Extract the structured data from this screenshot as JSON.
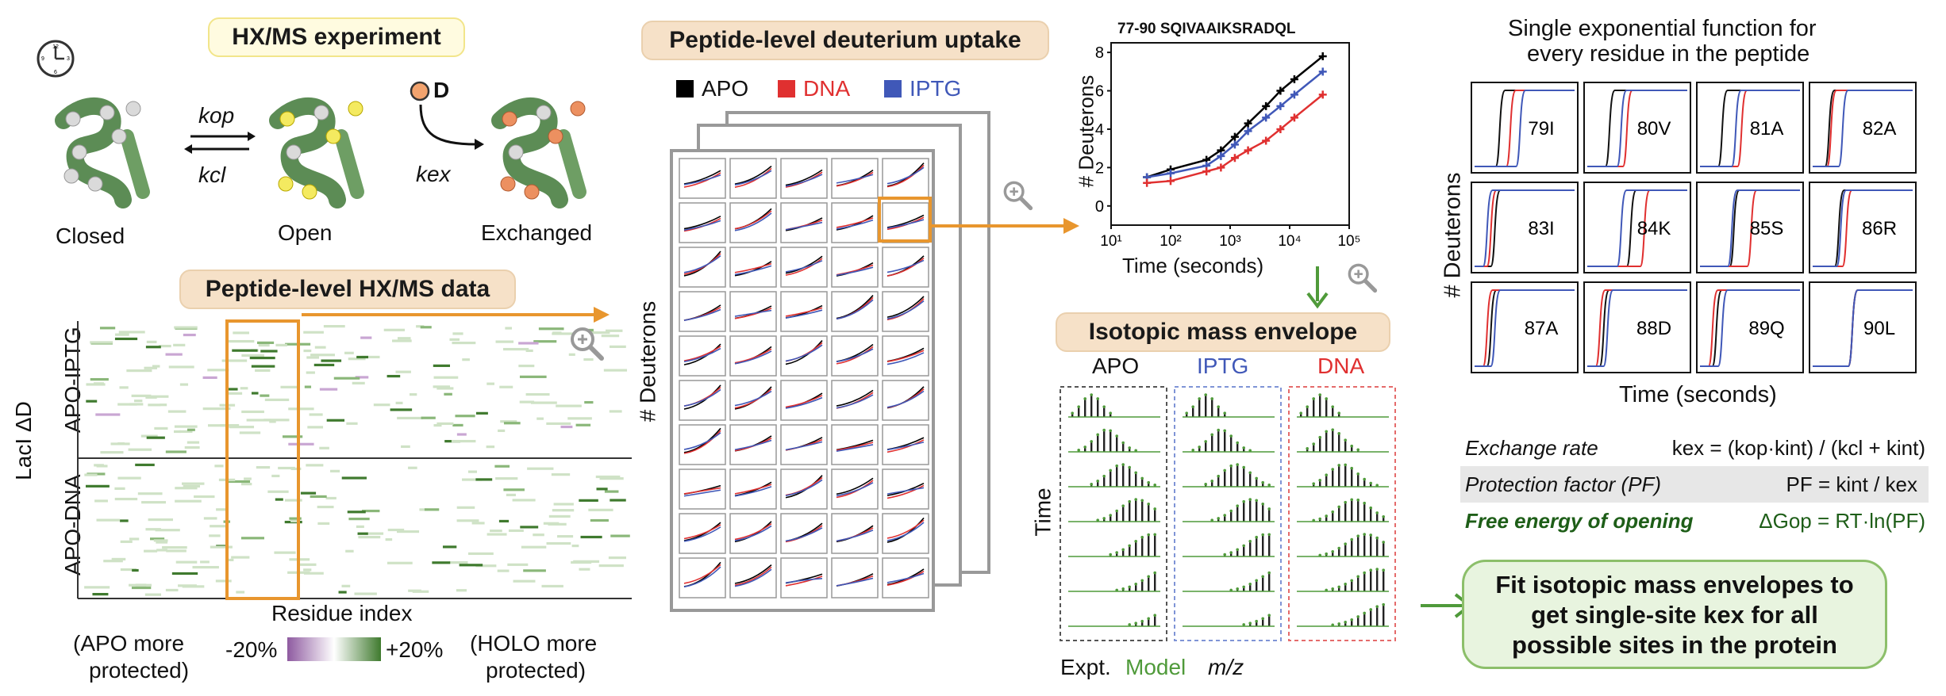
{
  "hxms_experiment": {
    "title": "HX/MS experiment",
    "states": [
      "Closed",
      "Open",
      "Exchanged"
    ],
    "rate_labels": {
      "kop": "kop",
      "kcl": "kcl",
      "kex": "kex"
    },
    "deuterium_label": "D"
  },
  "peptide_data": {
    "title": "Peptide-level HX/MS data",
    "y_group_label": "LacI ΔD",
    "row_labels": [
      "APO-IPTG",
      "APO-DNA"
    ],
    "x_label": "Residue index",
    "colorbar": {
      "min_label": "-20%",
      "max_label": "+20%",
      "min_color": "#8e5aa0",
      "max_color": "#3f7a2e"
    },
    "left_note": [
      "(APO more",
      "protected)"
    ],
    "right_note": [
      "(HOLO more",
      "protected)"
    ]
  },
  "uptake_panel": {
    "title": "Peptide-level deuterium uptake",
    "legend": [
      {
        "label": "APO",
        "color": "#000000"
      },
      {
        "label": "DNA",
        "color": "#e03030"
      },
      {
        "label": "IPTG",
        "color": "#4058b8"
      }
    ],
    "y_label": "# Deuterons"
  },
  "uptake_plot": {
    "title": "77-90 SQIVAAIKSRADQL",
    "x_label": "Time (seconds)",
    "y_label": "# Deuterons"
  },
  "chart_data": {
    "type": "line",
    "title": "77-90 SQIVAAIKSRADQL",
    "xlabel": "Time (seconds)",
    "ylabel": "# Deuterons",
    "xscale": "log",
    "xlim": [
      10,
      100000
    ],
    "ylim": [
      -1,
      8.5
    ],
    "x_ticks": [
      "10¹",
      "10²",
      "10³",
      "10⁴",
      "10⁵"
    ],
    "y_ticks": [
      0,
      2,
      4,
      6,
      8
    ],
    "x": [
      40,
      100,
      400,
      700,
      1200,
      2000,
      4000,
      7000,
      12000,
      36000
    ],
    "series": [
      {
        "name": "APO",
        "color": "#000000",
        "values": [
          1.5,
          1.9,
          2.4,
          2.9,
          3.6,
          4.3,
          5.2,
          6.0,
          6.6,
          7.8
        ]
      },
      {
        "name": "IPTG",
        "color": "#4058b8",
        "values": [
          1.5,
          1.7,
          2.1,
          2.6,
          3.2,
          3.9,
          4.6,
          5.2,
          5.8,
          7.0
        ]
      },
      {
        "name": "DNA",
        "color": "#e03030",
        "values": [
          1.2,
          1.3,
          1.8,
          2.0,
          2.5,
          2.9,
          3.4,
          4.0,
          4.6,
          5.8
        ]
      }
    ]
  },
  "residue_panel": {
    "title_line1": "Single exponential function for",
    "title_line2": "every residue in the peptide",
    "residues": [
      "79I",
      "80V",
      "81A",
      "82A",
      "83I",
      "84K",
      "85S",
      "86R",
      "87A",
      "88D",
      "89Q",
      "90L"
    ],
    "x_label": "Time (seconds)",
    "y_label": "# Deuterons"
  },
  "isotopic": {
    "title": "Isotopic mass envelope",
    "columns": [
      {
        "label": "APO",
        "color": "#111111"
      },
      {
        "label": "IPTG",
        "color": "#4058b8"
      },
      {
        "label": "DNA",
        "color": "#e03030"
      }
    ],
    "y_label": "Time",
    "legend_expt": "Expt.",
    "legend_model": "Model",
    "x_label": "m/z"
  },
  "formulas": {
    "exchange_rate": {
      "label": "Exchange rate",
      "equation": "kex = (kop·kint) / (kcl + kint)"
    },
    "protection_factor": {
      "label": "Protection factor (PF)",
      "equation": "PF = kint / kex"
    },
    "free_energy": {
      "label": "Free energy of opening",
      "equation": "ΔGop = RT·ln(PF)"
    }
  },
  "fit_box": {
    "line1": "Fit isotopic mass envelopes to",
    "line2": "get single-site kex for all",
    "line3": "possible sites in the protein"
  }
}
